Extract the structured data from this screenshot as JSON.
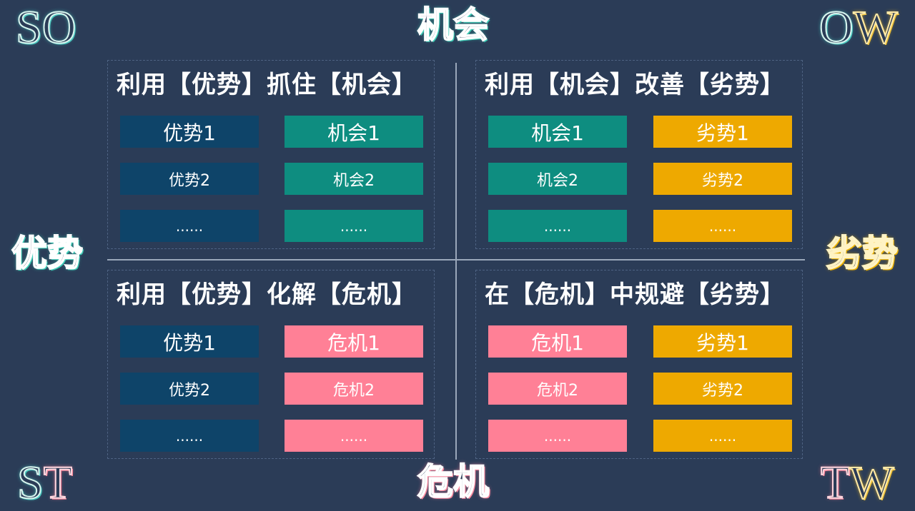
{
  "corners": {
    "top_left": [
      "S",
      "O"
    ],
    "top_right": [
      "O",
      "W"
    ],
    "bottom_left": [
      "S",
      "T"
    ],
    "bottom_right": [
      "T",
      "W"
    ]
  },
  "sides": {
    "top": "机会",
    "left": "优势",
    "right": "劣势",
    "bottom": "危机"
  },
  "quadrants": {
    "so": {
      "title": "利用【优势】抓住【机会】",
      "left": [
        "优势1",
        "优势2",
        "......"
      ],
      "right": [
        "机会1",
        "机会2",
        "......"
      ]
    },
    "ow": {
      "title": "利用【机会】改善【劣势】",
      "left": [
        "机会1",
        "机会2",
        "......"
      ],
      "right": [
        "劣势1",
        "劣势2",
        "......"
      ]
    },
    "st": {
      "title": "利用【优势】化解【危机】",
      "left": [
        "优势1",
        "优势2",
        "......"
      ],
      "right": [
        "危机1",
        "危机2",
        "......"
      ]
    },
    "tw": {
      "title": "在【危机】中规避【劣势】",
      "left": [
        "危机1",
        "危机2",
        "......"
      ],
      "right": [
        "劣势1",
        "劣势2",
        "......"
      ]
    }
  },
  "colors": {
    "background": "#2b3c57",
    "strength": "#0e4469",
    "opportunity": "#0e8d80",
    "weakness": "#eea900",
    "threat": "#ff8096"
  }
}
